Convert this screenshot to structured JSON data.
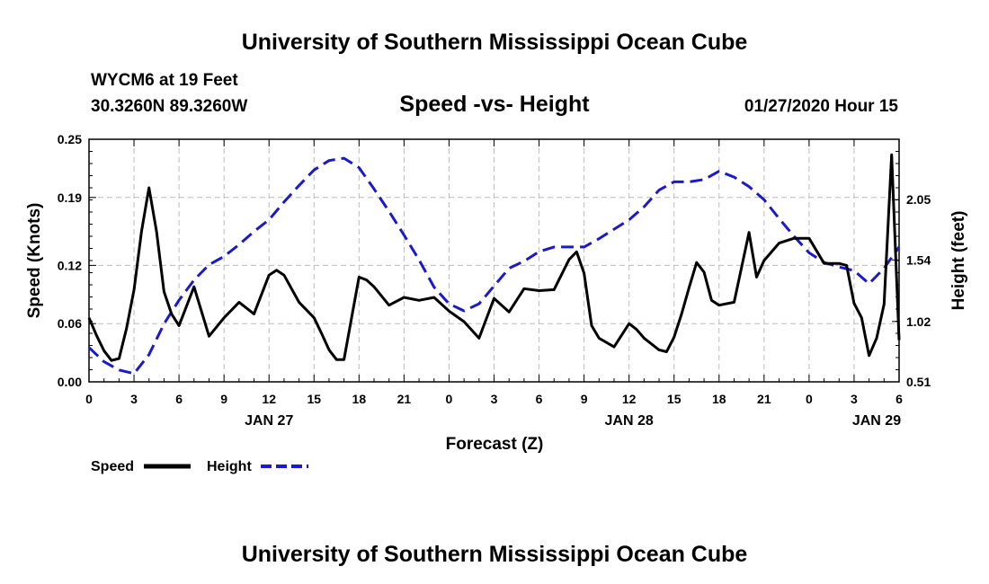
{
  "header": {
    "title": "University of Southern Mississippi Ocean Cube",
    "station": "WYCM6 at 19 Feet",
    "coords": "30.3260N 89.3260W",
    "subtitle": "Speed -vs- Height",
    "timestamp": "01/27/2020 Hour 15"
  },
  "footer": {
    "title": "University of Southern Mississippi Ocean Cube"
  },
  "legend": {
    "speed_label": "Speed",
    "height_label": "Height"
  },
  "chart_data": {
    "type": "line",
    "title": "Speed -vs- Height",
    "xlabel": "Forecast (Z)",
    "ylabel": "Speed (Knots)",
    "y2label": "Height (feet)",
    "xlim": [
      0,
      54
    ],
    "ylim": [
      0,
      0.25
    ],
    "y2lim": [
      0.51,
      2.56
    ],
    "grid": true,
    "legend_position": "bottom-left",
    "colors": {
      "speed": "#000000",
      "height": "#1a1acc",
      "grid": "#bbbbbb"
    },
    "x_ticks": [
      0,
      3,
      6,
      9,
      12,
      15,
      18,
      21,
      24,
      27,
      30,
      33,
      36,
      39,
      42,
      45,
      48,
      51,
      54
    ],
    "x_tick_labels": [
      "0",
      "3",
      "6",
      "9",
      "12",
      "15",
      "18",
      "21",
      "0",
      "3",
      "6",
      "9",
      "12",
      "15",
      "18",
      "21",
      "0",
      "3",
      "6"
    ],
    "y_ticks": [
      0.0,
      0.06,
      0.12,
      0.19,
      0.25
    ],
    "y_tick_labels": [
      "0.00",
      "0.06",
      "0.12",
      "0.19",
      "0.25"
    ],
    "y2_ticks": [
      0.51,
      1.02,
      1.54,
      2.05
    ],
    "y2_tick_labels": [
      "0.51",
      "1.02",
      "1.54",
      "2.05"
    ],
    "date_labels": [
      {
        "x": 12,
        "label": "JAN 27"
      },
      {
        "x": 36,
        "label": "JAN 28"
      },
      {
        "x": 52.5,
        "label": "JAN 29"
      }
    ],
    "series": [
      {
        "name": "Speed",
        "axis": "left",
        "style": "solid",
        "x": [
          0,
          0.5,
          1,
          1.5,
          2,
          2.5,
          3,
          3.5,
          4,
          4.5,
          5,
          5.5,
          6,
          7,
          8,
          9,
          10,
          11,
          12,
          12.5,
          13,
          14,
          15,
          15.5,
          16,
          16.5,
          17,
          18,
          18.5,
          19,
          20,
          21,
          22,
          23,
          24,
          25,
          26,
          27,
          28,
          29,
          30,
          31,
          32,
          32.5,
          33,
          33.5,
          34,
          35,
          36,
          36.5,
          37,
          38,
          38.5,
          39,
          39.5,
          40,
          40.5,
          41,
          41.5,
          42,
          43,
          44,
          44.5,
          45,
          46,
          47,
          48,
          49,
          50,
          50.5,
          51,
          51.5,
          52,
          52.5,
          53,
          53.5,
          54
        ],
        "values": [
          0.066,
          0.048,
          0.032,
          0.022,
          0.024,
          0.055,
          0.095,
          0.155,
          0.2,
          0.155,
          0.093,
          0.07,
          0.058,
          0.098,
          0.047,
          0.066,
          0.082,
          0.07,
          0.11,
          0.115,
          0.11,
          0.082,
          0.066,
          0.05,
          0.033,
          0.023,
          0.023,
          0.108,
          0.105,
          0.098,
          0.079,
          0.087,
          0.084,
          0.087,
          0.073,
          0.062,
          0.045,
          0.086,
          0.072,
          0.096,
          0.094,
          0.095,
          0.126,
          0.134,
          0.112,
          0.058,
          0.045,
          0.036,
          0.06,
          0.054,
          0.045,
          0.033,
          0.031,
          0.046,
          0.07,
          0.097,
          0.123,
          0.113,
          0.084,
          0.079,
          0.082,
          0.154,
          0.108,
          0.125,
          0.143,
          0.148,
          0.148,
          0.122,
          0.122,
          0.12,
          0.081,
          0.066,
          0.027,
          0.045,
          0.08,
          0.234,
          0.043
        ]
      },
      {
        "name": "Height",
        "axis": "right",
        "style": "dashed",
        "x": [
          0,
          1,
          2,
          3,
          4,
          5,
          6,
          7,
          8,
          9,
          10,
          11,
          12,
          13,
          14,
          15,
          16,
          17,
          18,
          19,
          20,
          21,
          22,
          23,
          24,
          25,
          26,
          27,
          28,
          29,
          30,
          31,
          32,
          33,
          34,
          35,
          36,
          37,
          38,
          39,
          40,
          41,
          42,
          43,
          44,
          45,
          46,
          47,
          48,
          49,
          50,
          51,
          52,
          53,
          54
        ],
        "values": [
          0.8,
          0.68,
          0.61,
          0.58,
          0.74,
          1.0,
          1.2,
          1.37,
          1.5,
          1.57,
          1.67,
          1.78,
          1.88,
          2.03,
          2.17,
          2.3,
          2.38,
          2.4,
          2.32,
          2.14,
          1.95,
          1.75,
          1.54,
          1.31,
          1.17,
          1.11,
          1.17,
          1.32,
          1.47,
          1.53,
          1.61,
          1.65,
          1.65,
          1.65,
          1.72,
          1.8,
          1.88,
          1.99,
          2.13,
          2.2,
          2.2,
          2.22,
          2.29,
          2.24,
          2.16,
          2.05,
          1.89,
          1.74,
          1.6,
          1.52,
          1.48,
          1.45,
          1.34,
          1.47,
          1.65
        ]
      }
    ]
  }
}
